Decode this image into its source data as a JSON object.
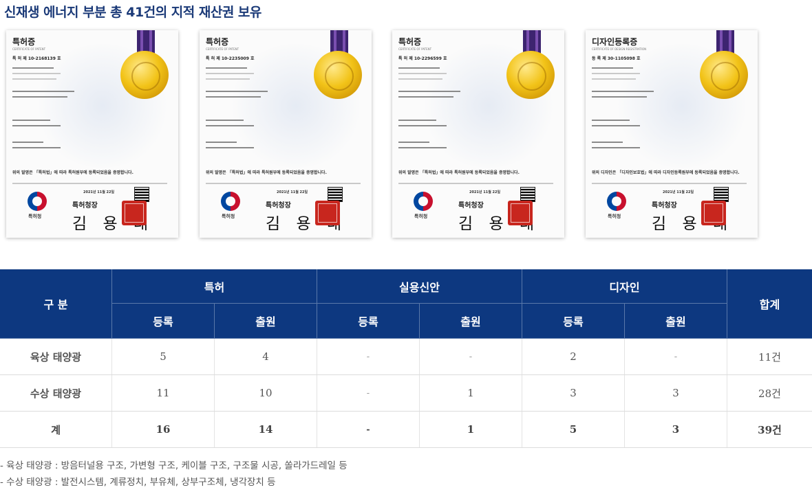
{
  "title": "신재생 에너지 부분 총 41건의 지적 재산권 보유",
  "certificates": [
    {
      "heading": "특허증",
      "subtitle": "CERTIFICATE OF PATENT",
      "number": "특 허 제 10-2168139 호",
      "statement": "위의 발명은 「특허법」에 따라 특허원부에 등록되었음을 증명합니다.",
      "date": "2021년 11월 22일",
      "office": "특허청장",
      "signature": "김 용 래",
      "emblem_label": "특허청"
    },
    {
      "heading": "특허증",
      "subtitle": "CERTIFICATE OF PATENT",
      "number": "특 허 제 10-2235009 호",
      "statement": "위의 발명은 「특허법」에 따라 특허원부에 등록되었음을 증명합니다.",
      "date": "2021년 11월 22일",
      "office": "특허청장",
      "signature": "김 용 래",
      "emblem_label": "특허청"
    },
    {
      "heading": "특허증",
      "subtitle": "CERTIFICATE OF PATENT",
      "number": "특 허 제 10-2296599 호",
      "statement": "위의 발명은 「특허법」에 따라 특허원부에 등록되었음을 증명합니다.",
      "date": "2021년 11월 22일",
      "office": "특허청장",
      "signature": "김 용 래",
      "emblem_label": "특허청"
    },
    {
      "heading": "디자인등록증",
      "subtitle": "CERTIFICATE OF DESIGN REGISTRATION",
      "number": "등 록 제 30-1105098 호",
      "statement": "위의 디자인은 「디자인보호법」에 따라 디자인등록원부에 등록되었음을 증명합니다.",
      "date": "2021년 11월 22일",
      "office": "특허청장",
      "signature": "김 용 래",
      "emblem_label": "특허청"
    }
  ],
  "table": {
    "header_category": "구 분",
    "groups": [
      "특허",
      "실용신안",
      "디자인"
    ],
    "subheaders": [
      "등록",
      "출원",
      "등록",
      "출원",
      "등록",
      "출원"
    ],
    "header_total": "합계",
    "rows": [
      {
        "label": "육상 태양광",
        "cells": [
          "5",
          "4",
          "-",
          "-",
          "2",
          "-"
        ],
        "total": "11건"
      },
      {
        "label": "수상 태양광",
        "cells": [
          "11",
          "10",
          "-",
          "1",
          "3",
          "3"
        ],
        "total": "28건"
      },
      {
        "label": "계",
        "cells": [
          "16",
          "14",
          "-",
          "1",
          "5",
          "3"
        ],
        "total": "39건"
      }
    ]
  },
  "notes": [
    "- 육상 태양광 : 방음터널용 구조, 가변형 구조, 케이블 구조, 구조물 시공, 쏠라가드레일 등",
    "- 수상 태양광 : 발전시스템, 계류정치, 부유체, 상부구조체, 냉각장치 등"
  ],
  "colors": {
    "header_bg": "#0d3880",
    "title": "#1b3a78",
    "seal": "#c8261e",
    "medal": "#f2c318",
    "ribbon": "#3d2470"
  }
}
